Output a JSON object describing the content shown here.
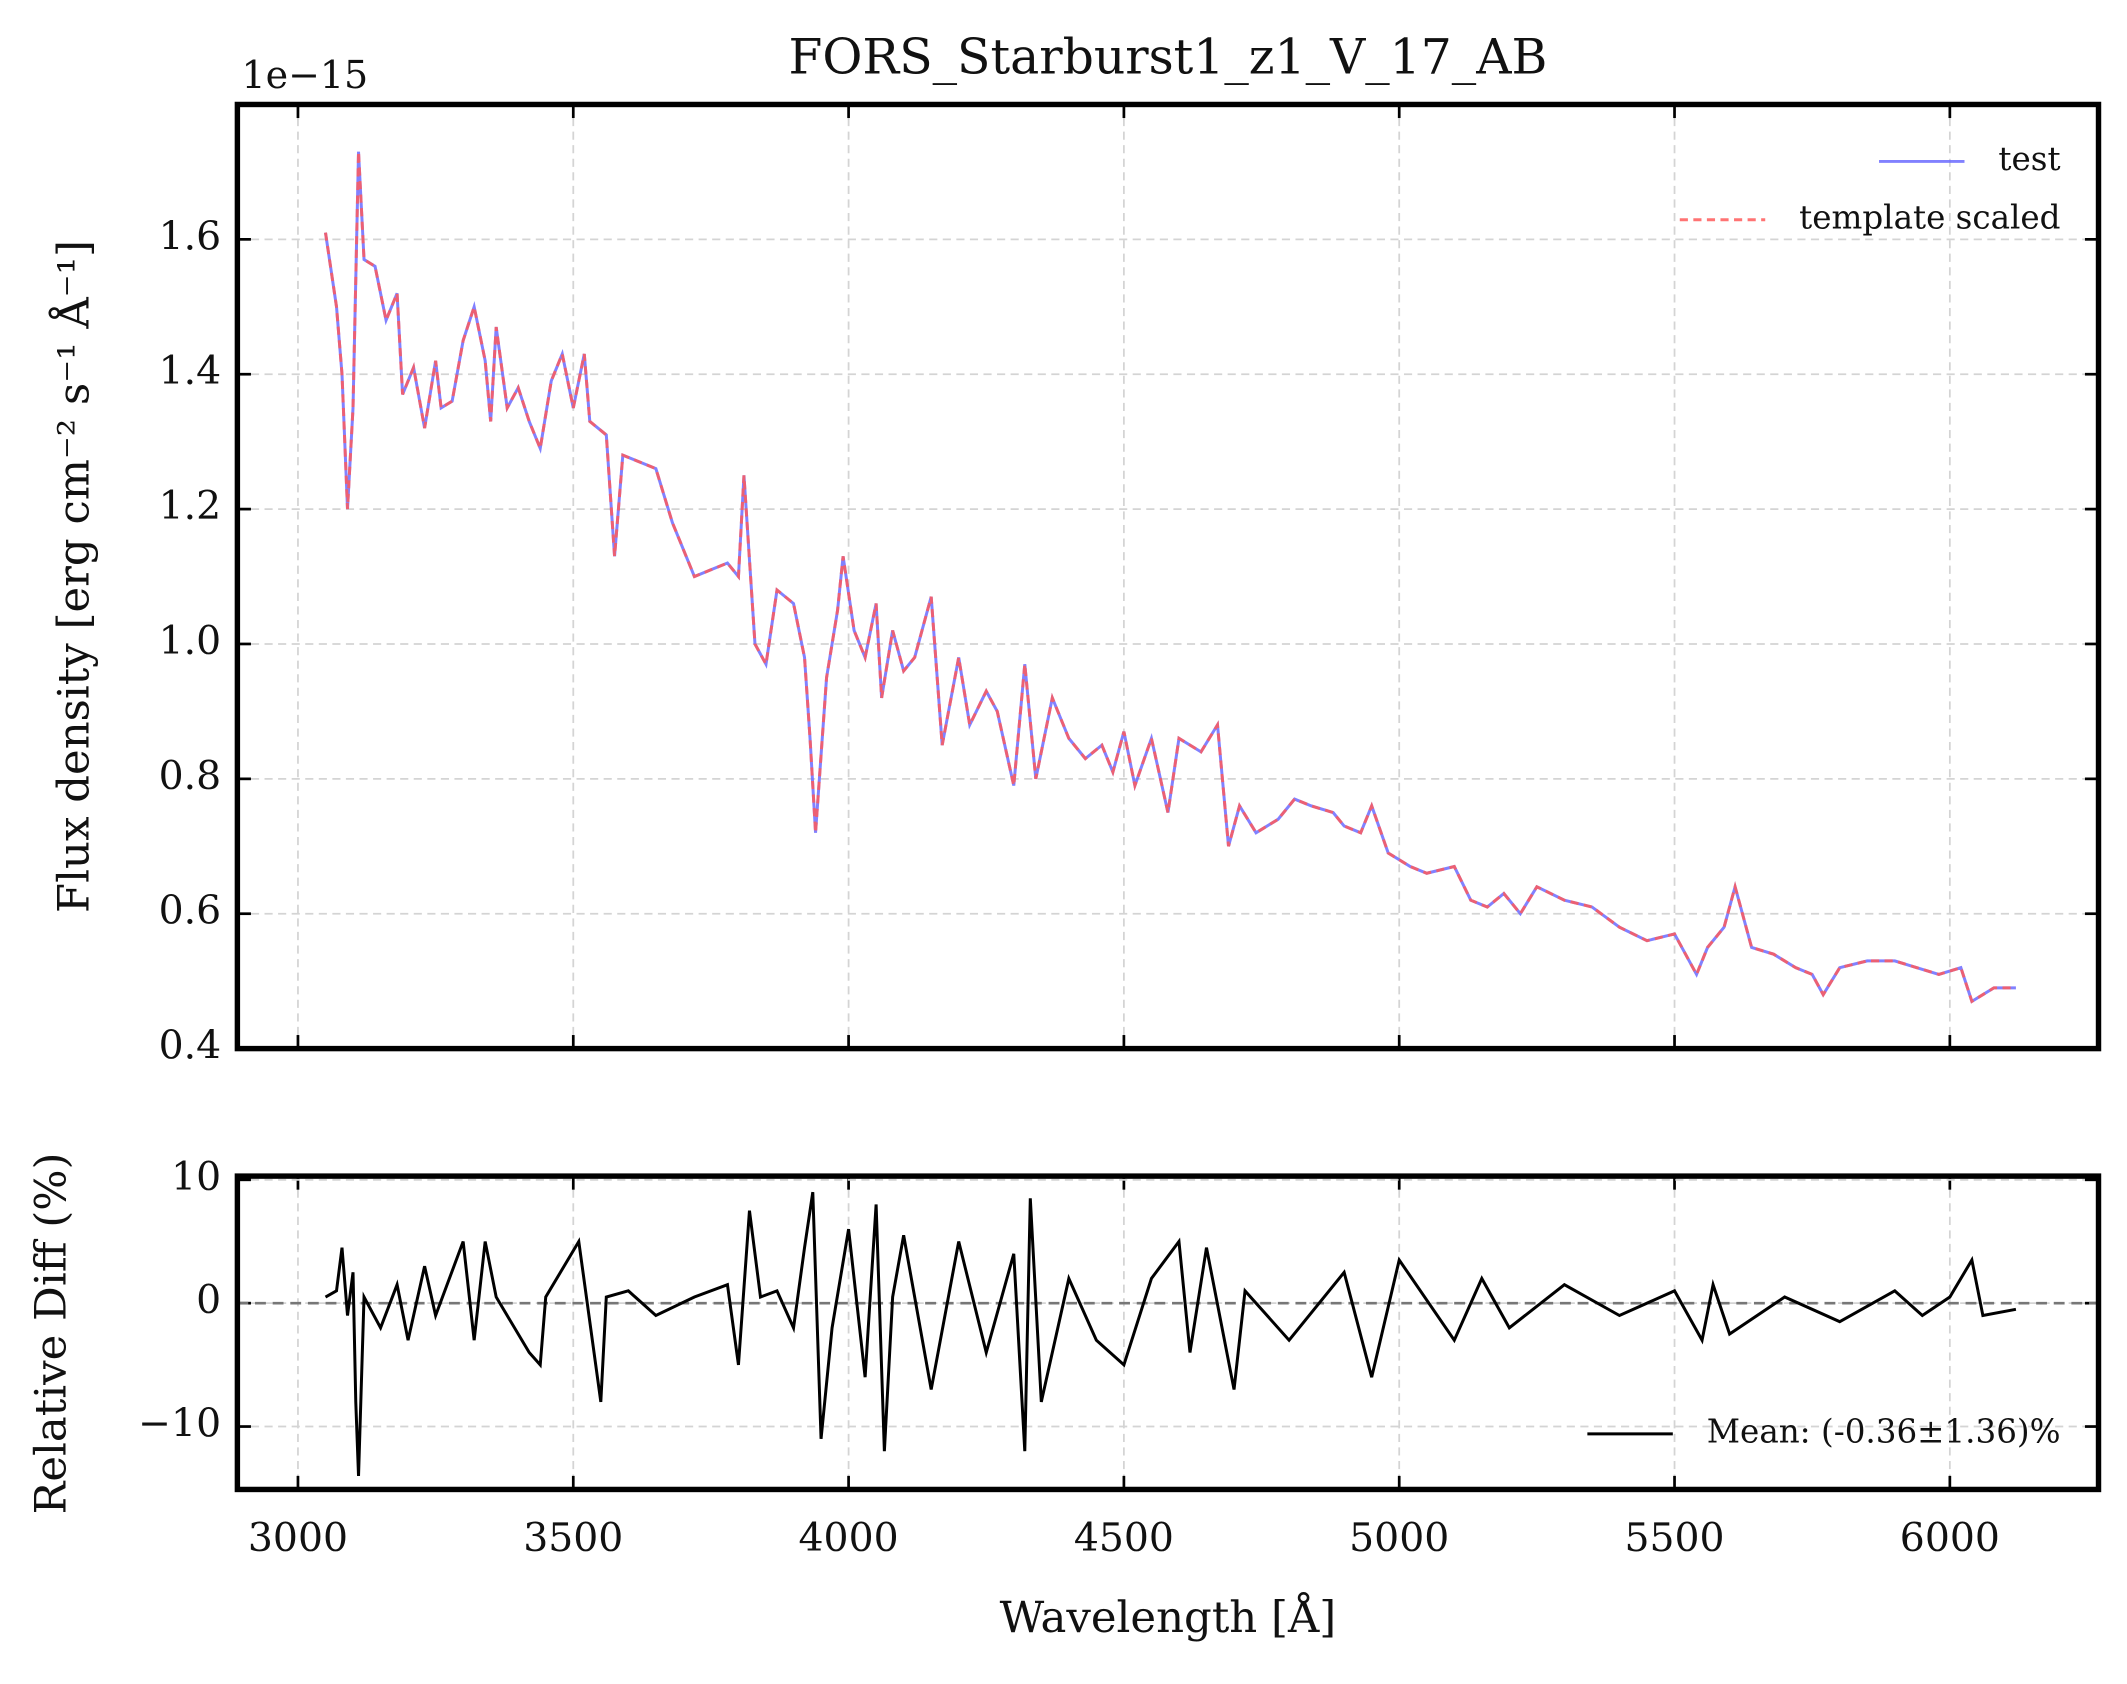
{
  "chart_data": [
    {
      "type": "line",
      "title": "FORS_Starburst1_z1_V_17_AB",
      "y_label": "Flux density [erg cm⁻² s⁻¹ Å⁻¹]",
      "offset_label": "1e−15",
      "x": [
        3050,
        3070,
        3080,
        3090,
        3100,
        3110,
        3120,
        3140,
        3160,
        3180,
        3190,
        3210,
        3230,
        3250,
        3260,
        3280,
        3300,
        3320,
        3340,
        3350,
        3360,
        3380,
        3400,
        3420,
        3440,
        3460,
        3480,
        3500,
        3520,
        3530,
        3560,
        3575,
        3590,
        3620,
        3650,
        3680,
        3700,
        3720,
        3750,
        3780,
        3800,
        3810,
        3830,
        3850,
        3870,
        3900,
        3920,
        3930,
        3940,
        3960,
        3980,
        3990,
        4010,
        4030,
        4050,
        4060,
        4080,
        4100,
        4120,
        4150,
        4170,
        4200,
        4220,
        4250,
        4270,
        4300,
        4320,
        4340,
        4370,
        4400,
        4430,
        4460,
        4480,
        4500,
        4520,
        4550,
        4580,
        4600,
        4640,
        4670,
        4690,
        4710,
        4740,
        4780,
        4810,
        4840,
        4880,
        4900,
        4930,
        4950,
        4980,
        5020,
        5050,
        5100,
        5130,
        5160,
        5190,
        5220,
        5250,
        5300,
        5350,
        5400,
        5450,
        5500,
        5540,
        5560,
        5590,
        5610,
        5640,
        5680,
        5720,
        5750,
        5770,
        5800,
        5850,
        5900,
        5940,
        5980,
        6020,
        6040,
        6080,
        6120
      ],
      "series": [
        {
          "name": "test",
          "color": "#6b6bff",
          "linestyle": "solid",
          "values": [
            1.61,
            1.5,
            1.4,
            1.2,
            1.35,
            1.73,
            1.57,
            1.56,
            1.48,
            1.52,
            1.37,
            1.41,
            1.32,
            1.42,
            1.35,
            1.36,
            1.45,
            1.5,
            1.42,
            1.33,
            1.47,
            1.35,
            1.38,
            1.33,
            1.29,
            1.39,
            1.43,
            1.35,
            1.43,
            1.33,
            1.31,
            1.13,
            1.28,
            1.27,
            1.26,
            1.18,
            1.14,
            1.1,
            1.11,
            1.12,
            1.1,
            1.25,
            1.0,
            0.97,
            1.08,
            1.06,
            0.98,
            0.86,
            0.72,
            0.95,
            1.05,
            1.13,
            1.02,
            0.98,
            1.06,
            0.92,
            1.02,
            0.96,
            0.98,
            1.07,
            0.85,
            0.98,
            0.88,
            0.93,
            0.9,
            0.79,
            0.97,
            0.8,
            0.92,
            0.86,
            0.83,
            0.85,
            0.81,
            0.87,
            0.79,
            0.86,
            0.75,
            0.86,
            0.84,
            0.88,
            0.7,
            0.76,
            0.72,
            0.74,
            0.77,
            0.76,
            0.75,
            0.73,
            0.72,
            0.76,
            0.69,
            0.67,
            0.66,
            0.67,
            0.62,
            0.61,
            0.63,
            0.6,
            0.64,
            0.62,
            0.61,
            0.58,
            0.56,
            0.57,
            0.51,
            0.55,
            0.58,
            0.64,
            0.55,
            0.54,
            0.52,
            0.51,
            0.48,
            0.52,
            0.53,
            0.53,
            0.52,
            0.51,
            0.52,
            0.47,
            0.49,
            0.49
          ]
        },
        {
          "name": "template scaled",
          "color": "#ff5a5a",
          "linestyle": "dashed",
          "values": [
            1.61,
            1.5,
            1.4,
            1.2,
            1.35,
            1.73,
            1.57,
            1.56,
            1.48,
            1.52,
            1.37,
            1.41,
            1.32,
            1.42,
            1.35,
            1.36,
            1.45,
            1.5,
            1.42,
            1.33,
            1.47,
            1.35,
            1.38,
            1.33,
            1.29,
            1.39,
            1.43,
            1.35,
            1.43,
            1.33,
            1.31,
            1.13,
            1.28,
            1.27,
            1.26,
            1.18,
            1.14,
            1.1,
            1.11,
            1.12,
            1.1,
            1.25,
            1.0,
            0.97,
            1.08,
            1.06,
            0.98,
            0.86,
            0.72,
            0.95,
            1.05,
            1.13,
            1.02,
            0.98,
            1.06,
            0.92,
            1.02,
            0.96,
            0.98,
            1.07,
            0.85,
            0.98,
            0.88,
            0.93,
            0.9,
            0.79,
            0.97,
            0.8,
            0.92,
            0.86,
            0.83,
            0.85,
            0.81,
            0.87,
            0.79,
            0.86,
            0.75,
            0.86,
            0.84,
            0.88,
            0.7,
            0.76,
            0.72,
            0.74,
            0.77,
            0.76,
            0.75,
            0.73,
            0.72,
            0.76,
            0.69,
            0.67,
            0.66,
            0.67,
            0.62,
            0.61,
            0.63,
            0.6,
            0.64,
            0.62,
            0.61,
            0.58,
            0.56,
            0.57,
            0.51,
            0.55,
            0.58,
            0.64,
            0.55,
            0.54,
            0.52,
            0.51,
            0.48,
            0.52,
            0.53,
            0.53,
            0.52,
            0.51,
            0.52,
            0.47,
            0.49,
            0.49
          ]
        }
      ],
      "xlim": [
        2890,
        6270
      ],
      "xticks": [
        3000,
        3500,
        4000,
        4500,
        5000,
        5500,
        6000
      ],
      "show_xtick_labels": false,
      "ylim": [
        0.4,
        1.8
      ],
      "yticks": [
        0.4,
        0.6,
        0.8,
        {
          "value": 1,
          "label": "1.0"
        },
        1.2,
        1.4,
        1.6
      ],
      "grid": true,
      "legend": "upper right"
    },
    {
      "type": "line",
      "x_label": "Wavelength [Å]",
      "y_label": "Relative Diff (%)",
      "x": [
        3050,
        3070,
        3080,
        3090,
        3100,
        3105,
        3110,
        3120,
        3150,
        3180,
        3200,
        3230,
        3250,
        3300,
        3320,
        3340,
        3360,
        3420,
        3440,
        3450,
        3510,
        3550,
        3560,
        3600,
        3650,
        3720,
        3780,
        3800,
        3820,
        3840,
        3870,
        3900,
        3920,
        3935,
        3950,
        3970,
        4000,
        4030,
        4050,
        4065,
        4080,
        4100,
        4150,
        4200,
        4250,
        4300,
        4320,
        4330,
        4350,
        4400,
        4450,
        4500,
        4550,
        4600,
        4620,
        4650,
        4700,
        4720,
        4800,
        4900,
        4950,
        5000,
        5100,
        5150,
        5200,
        5300,
        5400,
        5500,
        5550,
        5570,
        5600,
        5700,
        5800,
        5900,
        5950,
        6000,
        6040,
        6060,
        6120
      ],
      "series": [
        {
          "name": "Mean: (-0.36±1.36)%",
          "color": "#000000",
          "linestyle": "solid",
          "values": [
            0.5,
            1,
            4.5,
            -1,
            2.5,
            -8,
            -14,
            0.5,
            -2,
            1.5,
            -3,
            3,
            -1,
            5,
            -3,
            5,
            0.5,
            -4,
            -5,
            0.5,
            5,
            -8,
            0.5,
            1,
            -1,
            0.5,
            1.5,
            -5,
            7.5,
            0.5,
            1,
            -2,
            4.5,
            9,
            -11,
            -2,
            6,
            -6,
            8,
            -12,
            0.5,
            5.5,
            -7,
            5,
            -4,
            4,
            -12,
            8.5,
            -8,
            2,
            -3,
            -5,
            2,
            5,
            -4,
            4.5,
            -7,
            1,
            -3,
            2.5,
            -6,
            3.5,
            -3,
            2,
            -2,
            1.5,
            -1,
            1,
            -3,
            1.5,
            -2.5,
            0.5,
            -1.5,
            1,
            -1,
            0.5,
            3.5,
            -1,
            -0.5
          ]
        }
      ],
      "reference_line": 0,
      "xlim": [
        2890,
        6270
      ],
      "xticks": [
        3000,
        3500,
        4000,
        4500,
        5000,
        5500,
        6000
      ],
      "show_xtick_labels": true,
      "ylim": [
        -15.1,
        10.3
      ],
      "yticks": [
        {
          "value": -10,
          "label": "−10"
        },
        0,
        10
      ],
      "grid": true,
      "legend": "lower right"
    }
  ]
}
